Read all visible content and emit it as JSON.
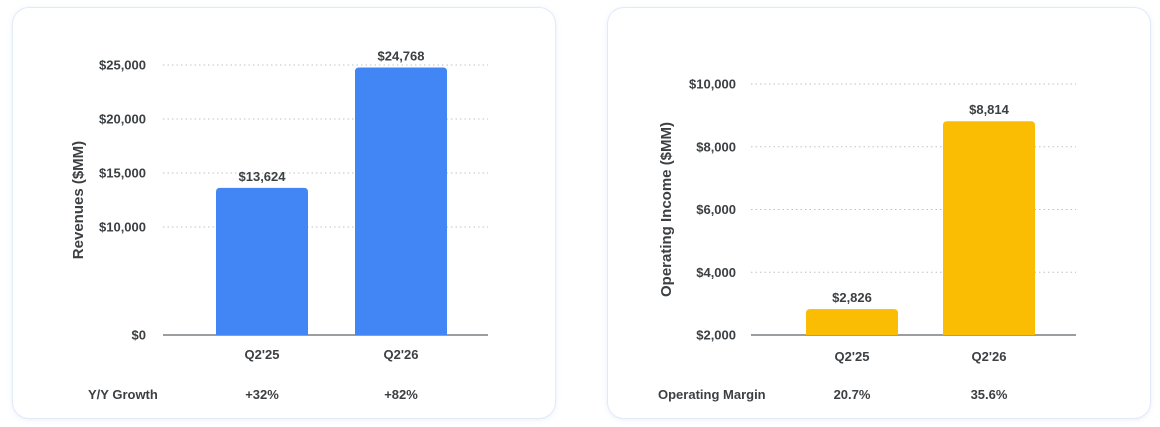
{
  "colors": {
    "revenue_bar": "#4285f4",
    "income_bar": "#fbbc04",
    "axis": "#5f6368",
    "grid": "#bdc1c6"
  },
  "chart_data": [
    {
      "type": "bar",
      "title": "",
      "xlabel": "",
      "ylabel": "Revenues ($MM)",
      "categories": [
        "Q2'25",
        "Q2'26"
      ],
      "values": [
        13624,
        24768
      ],
      "data_labels": [
        "$13,624",
        "$24,768"
      ],
      "ylim": [
        0,
        25000
      ],
      "y_ticks": [
        {
          "value": 0,
          "label": "$0"
        },
        {
          "value": 10000,
          "label": "$10,000"
        },
        {
          "value": 15000,
          "label": "$15,000"
        },
        {
          "value": 20000,
          "label": "$20,000"
        },
        {
          "value": 25000,
          "label": "$25,000"
        }
      ],
      "grid": true,
      "footer": {
        "label": "Y/Y Growth",
        "values": [
          "+32%",
          "+82%"
        ]
      }
    },
    {
      "type": "bar",
      "title": "",
      "xlabel": "",
      "ylabel": "Operating Income ($MM)",
      "categories": [
        "Q2'25",
        "Q2'26"
      ],
      "values": [
        2826,
        8814
      ],
      "data_labels": [
        "$2,826",
        "$8,814"
      ],
      "ylim": [
        2000,
        10000
      ],
      "y_ticks": [
        {
          "value": 2000,
          "label": "$2,000"
        },
        {
          "value": 4000,
          "label": "$4,000"
        },
        {
          "value": 6000,
          "label": "$6,000"
        },
        {
          "value": 8000,
          "label": "$8,000"
        },
        {
          "value": 10000,
          "label": "$10,000"
        }
      ],
      "grid": true,
      "footer": {
        "label": "Operating Margin",
        "values": [
          "20.7%",
          "35.6%"
        ]
      }
    }
  ]
}
